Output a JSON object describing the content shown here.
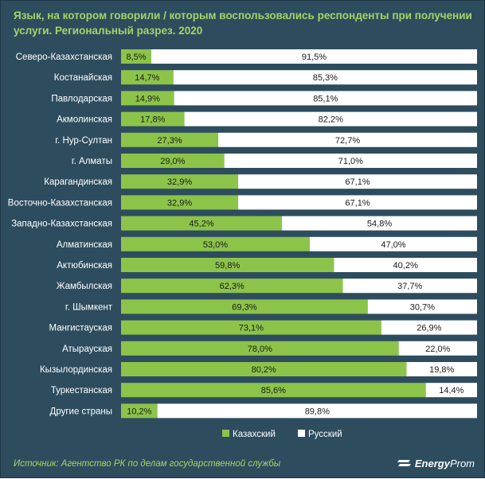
{
  "chart_data": {
    "type": "bar",
    "orientation": "horizontal",
    "stacked": "percent",
    "title": "Язык, на котором говорили / которым воспользовались респонденты при получении услуги. Региональный разрез. 2020",
    "categories": [
      "Северо-Казахстанская",
      "Костанайская",
      "Павлодарская",
      "Акмолинская",
      "г. Нур-Султан",
      "г. Алматы",
      "Карагандинская",
      "Восточно-Казахстанская",
      "Западно-Казахстанская",
      "Алматинская",
      "Актюбинская",
      "Жамбылская",
      "г. Шымкент",
      "Мангистауская",
      "Атырауская",
      "Кызылординская",
      "Туркестанская",
      "Другие страны"
    ],
    "series": [
      {
        "name": "Казахский",
        "color": "#8cc44a",
        "values": [
          8.5,
          14.7,
          14.9,
          17.8,
          27.3,
          29.0,
          32.9,
          32.9,
          45.2,
          53.0,
          59.8,
          62.3,
          69.3,
          73.1,
          78.0,
          80.2,
          85.6,
          10.2
        ],
        "labels": [
          "8,5%",
          "14,7%",
          "14,9%",
          "17,8%",
          "27,3%",
          "29,0%",
          "32,9%",
          "32,9%",
          "45,2%",
          "53,0%",
          "59,8%",
          "62,3%",
          "69,3%",
          "73,1%",
          "78,0%",
          "80,2%",
          "85,6%",
          "10,2%"
        ]
      },
      {
        "name": "Русский",
        "color": "#ffffff",
        "values": [
          91.5,
          85.3,
          85.1,
          82.2,
          72.7,
          71.0,
          67.1,
          67.1,
          54.8,
          47.0,
          40.2,
          37.7,
          30.7,
          26.9,
          22.0,
          19.8,
          14.4,
          89.8
        ],
        "labels": [
          "91,5%",
          "85,3%",
          "85,1%",
          "82,2%",
          "72,7%",
          "71,0%",
          "67,1%",
          "67,1%",
          "54,8%",
          "47,0%",
          "40,2%",
          "37,7%",
          "30,7%",
          "26,9%",
          "22,0%",
          "19,8%",
          "14,4%",
          "89,8%"
        ]
      }
    ],
    "xlim": [
      0,
      100
    ],
    "grid": false,
    "legend": "bottom"
  },
  "source": "Источник: Агентство РК по делам государственной службы",
  "brand": {
    "bold": "Energy",
    "light": "Prom"
  },
  "colors": {
    "background": "#2d4d5e",
    "title": "#a3d468",
    "kazakh": "#8cc44a",
    "russian": "#ffffff"
  }
}
